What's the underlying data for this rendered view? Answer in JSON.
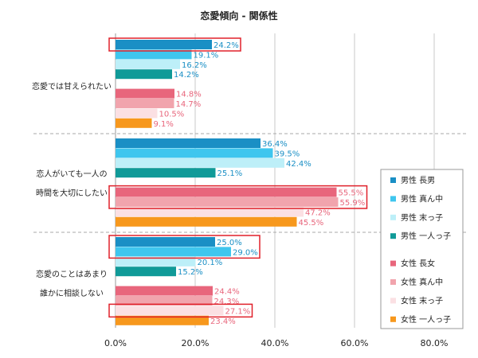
{
  "chart_data": {
    "type": "bar",
    "orientation": "horizontal",
    "title": "恋愛傾向 - 関係性",
    "categories": [
      [
        "恋愛では甘えられたい"
      ],
      [
        "恋人がいても一人の",
        "時間を大切にしたい"
      ],
      [
        "恋愛のことはあまり",
        "誰かに相談しない"
      ]
    ],
    "xlim": [
      0,
      80
    ],
    "xticks": [
      "0.0%",
      "20.0%",
      "40.0%",
      "60.0%",
      "80.0%"
    ],
    "grid": true,
    "legend_position": "right",
    "series": [
      {
        "name": "男性 長男",
        "color": "#1a8fc5",
        "label_color": "#1a8fc5",
        "values": [
          24.2,
          36.4,
          25.0
        ],
        "labels": [
          "24.2%",
          "36.4%",
          "25.0%"
        ]
      },
      {
        "name": "男性 真ん中",
        "color": "#3fc6ee",
        "label_color": "#1a8fc5",
        "values": [
          19.1,
          39.5,
          29.0
        ],
        "labels": [
          "19.1%",
          "39.5%",
          "29.0%"
        ]
      },
      {
        "name": "男性 末っ子",
        "color": "#bdeff8",
        "label_color": "#1a8fc5",
        "values": [
          16.2,
          42.4,
          20.1
        ],
        "labels": [
          "16.2%",
          "42.4%",
          "20.1%"
        ]
      },
      {
        "name": "男性 一人っ子",
        "color": "#109a98",
        "label_color": "#1a8fc5",
        "values": [
          14.2,
          25.1,
          15.2
        ],
        "labels": [
          "14.2%",
          "25.1%",
          "15.2%"
        ]
      },
      {
        "name": "女性 長女",
        "color": "#e8667c",
        "label_color": "#e8667c",
        "values": [
          14.8,
          55.5,
          24.4
        ],
        "labels": [
          "14.8%",
          "55.5%",
          "24.4%"
        ]
      },
      {
        "name": "女性 真ん中",
        "color": "#f1a4ad",
        "label_color": "#e8667c",
        "values": [
          14.7,
          55.9,
          24.3
        ],
        "labels": [
          "14.7%",
          "55.9%",
          "24.3%"
        ]
      },
      {
        "name": "女性 末っ子",
        "color": "#fbe0e3",
        "label_color": "#e8667c",
        "values": [
          10.5,
          47.2,
          27.1
        ],
        "labels": [
          "10.5%",
          "47.2%",
          "27.1%"
        ]
      },
      {
        "name": "女性 一人っ子",
        "color": "#f7981d",
        "label_color": "#e8667c",
        "values": [
          9.1,
          45.5,
          23.4
        ],
        "labels": [
          "9.1%",
          "45.5%",
          "23.4%"
        ]
      }
    ],
    "highlight_boxes": [
      {
        "category": 0,
        "from_series": 0,
        "to_series": 0
      },
      {
        "category": 1,
        "from_series": 4,
        "to_series": 5
      },
      {
        "category": 2,
        "from_series": 0,
        "to_series": 1
      },
      {
        "category": 2,
        "from_series": 6,
        "to_series": 6
      }
    ]
  }
}
